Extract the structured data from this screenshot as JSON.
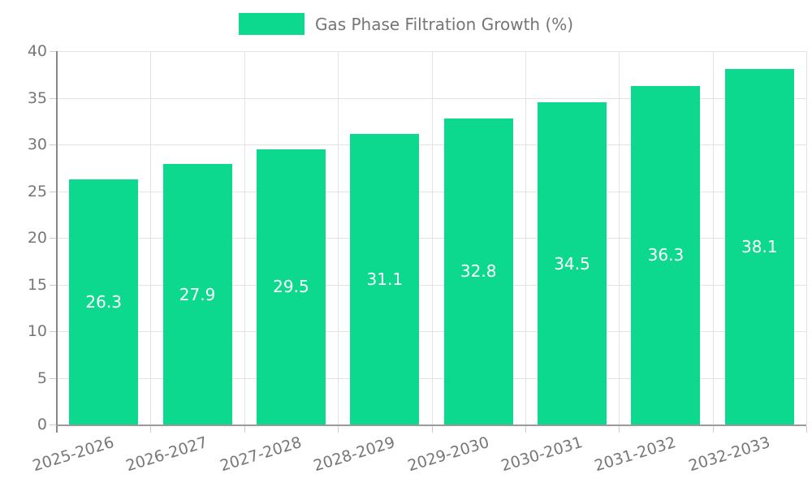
{
  "colors": {
    "bar": "#0dd98e",
    "grid": "#e3e3e3",
    "tick": "#cccccc",
    "spine": "#888888",
    "axis_line": "#9a9a9a",
    "axis_text": "#777777",
    "legend_text": "#757575",
    "bar_label": "#ffffff",
    "background": "#ffffff"
  },
  "chart_data": {
    "type": "bar",
    "title": "",
    "legend": "Gas Phase Filtration Growth (%)",
    "legend_position": "top-center",
    "categories": [
      "2025-2026",
      "2026-2027",
      "2027-2028",
      "2028-2029",
      "2029-2030",
      "2030-2031",
      "2031-2032",
      "2032-2033"
    ],
    "values": [
      26.3,
      27.9,
      29.5,
      31.1,
      32.8,
      34.5,
      36.3,
      38.1
    ],
    "bar_labels": [
      "26.3",
      "27.9",
      "29.5",
      "31.1",
      "32.8",
      "34.5",
      "36.3",
      "38.1"
    ],
    "xlabel": "",
    "ylabel": "",
    "ylim": [
      0,
      40
    ],
    "yticks": [
      0,
      5,
      10,
      15,
      20,
      25,
      30,
      35,
      40
    ],
    "grid": true,
    "x_tick_rotation": -17
  }
}
